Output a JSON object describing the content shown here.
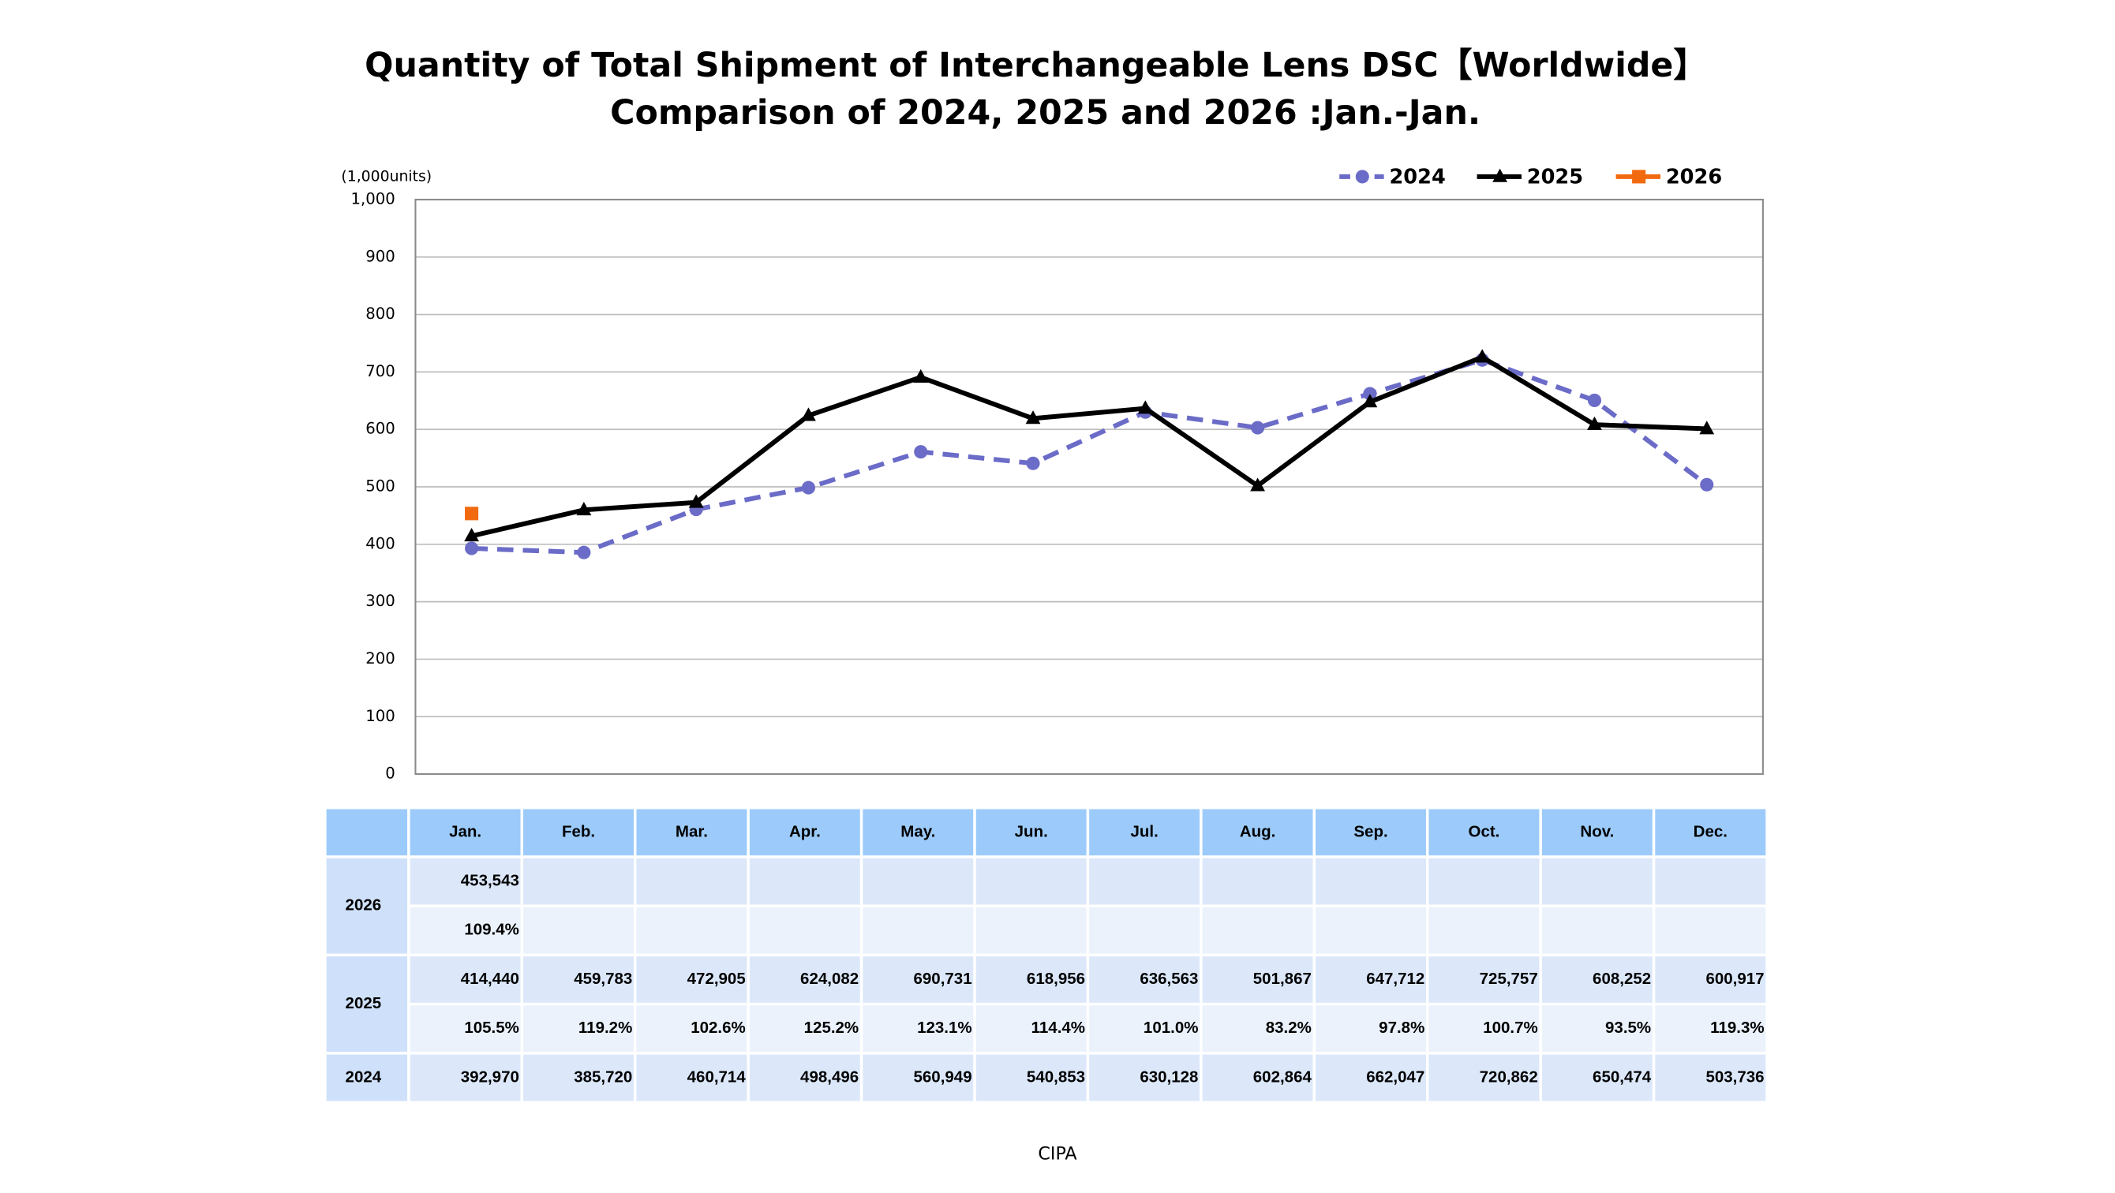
{
  "chart_data": {
    "type": "line",
    "title": "Quantity of Total Shipment of Interchangeable Lens DSC【Worldwide】",
    "subtitle": "Comparison of 2024, 2025 and 2026 :Jan.-Jan.",
    "y_label": "(1,000units)",
    "source": "CIPA",
    "categories": [
      "Jan.",
      "Feb.",
      "Mar.",
      "Apr.",
      "May.",
      "Jun.",
      "Jul.",
      "Aug.",
      "Sep.",
      "Oct.",
      "Nov.",
      "Dec."
    ],
    "ylim": [
      0,
      1000
    ],
    "yticks": [
      0,
      100,
      200,
      300,
      400,
      500,
      600,
      700,
      800,
      900,
      {
        "value": 1000,
        "label": "1,000"
      }
    ],
    "grid": true,
    "legend": "top-right",
    "series": [
      {
        "name": "2024",
        "color": "#6b6bc8",
        "dashed": true,
        "marker": "circle",
        "values": [
          392.97,
          385.72,
          460.714,
          498.496,
          560.949,
          540.853,
          630.128,
          602.864,
          662.047,
          720.862,
          650.474,
          503.736
        ]
      },
      {
        "name": "2025",
        "color": "#000000",
        "dashed": false,
        "marker": "triangle",
        "values": [
          414.44,
          459.783,
          472.905,
          624.082,
          690.731,
          618.956,
          636.563,
          501.867,
          647.712,
          725.757,
          608.252,
          600.917
        ]
      },
      {
        "name": "2026",
        "color": "#f26a10",
        "dashed": false,
        "marker": "square",
        "values": [
          453.543,
          null,
          null,
          null,
          null,
          null,
          null,
          null,
          null,
          null,
          null,
          null
        ]
      }
    ]
  },
  "table": {
    "rows": [
      {
        "series": 2,
        "quantity": [
          "453,543"
        ],
        "ratio": [
          "109.4%"
        ]
      },
      {
        "series": 1,
        "quantity": [
          "414,440",
          "459,783",
          "472,905",
          "624,082",
          "690,731",
          "618,956",
          "636,563",
          "501,867",
          "647,712",
          "725,757",
          "608,252",
          "600,917"
        ],
        "ratio": [
          "105.5%",
          "119.2%",
          "102.6%",
          "125.2%",
          "123.1%",
          "114.4%",
          "101.0%",
          "83.2%",
          "97.8%",
          "100.7%",
          "93.5%",
          "119.3%"
        ]
      },
      {
        "series": 0,
        "quantity": [
          "392,970",
          "385,720",
          "460,714",
          "498,496",
          "560,949",
          "540,853",
          "630,128",
          "602,864",
          "662,047",
          "720,862",
          "650,474",
          "503,736"
        ]
      }
    ]
  }
}
